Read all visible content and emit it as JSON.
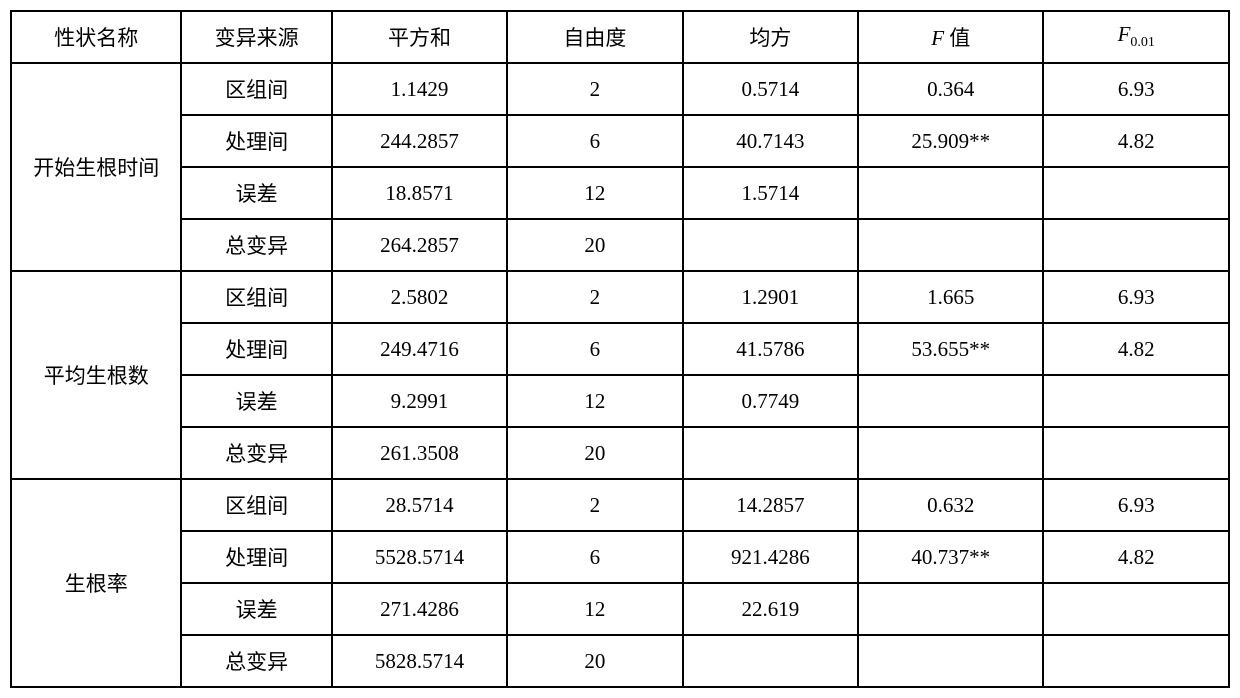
{
  "headers": {
    "trait": "性状名称",
    "source": "变异来源",
    "ss": "平方和",
    "df": "自由度",
    "ms": "均方",
    "f_label": "F",
    "f_suffix": " 值",
    "f001_label": "F",
    "f001_sub": "0.01"
  },
  "groups": [
    {
      "trait": "开始生根时间",
      "rows": [
        {
          "source": "区组间",
          "ss": "1.1429",
          "df": "2",
          "ms": "0.5714",
          "f": "0.364",
          "f001": "6.93"
        },
        {
          "source": "处理间",
          "ss": "244.2857",
          "df": "6",
          "ms": "40.7143",
          "f": "25.909**",
          "f001": "4.82"
        },
        {
          "source": "误差",
          "ss": "18.8571",
          "df": "12",
          "ms": "1.5714",
          "f": "",
          "f001": ""
        },
        {
          "source": "总变异",
          "ss": "264.2857",
          "df": "20",
          "ms": "",
          "f": "",
          "f001": ""
        }
      ]
    },
    {
      "trait": "平均生根数",
      "rows": [
        {
          "source": "区组间",
          "ss": "2.5802",
          "df": "2",
          "ms": "1.2901",
          "f": "1.665",
          "f001": "6.93"
        },
        {
          "source": "处理间",
          "ss": "249.4716",
          "df": "6",
          "ms": "41.5786",
          "f": "53.655**",
          "f001": "4.82"
        },
        {
          "source": "误差",
          "ss": "9.2991",
          "df": "12",
          "ms": "0.7749",
          "f": "",
          "f001": ""
        },
        {
          "source": "总变异",
          "ss": "261.3508",
          "df": "20",
          "ms": "",
          "f": "",
          "f001": ""
        }
      ]
    },
    {
      "trait": "生根率",
      "rows": [
        {
          "source": "区组间",
          "ss": "28.5714",
          "df": "2",
          "ms": "14.2857",
          "f": "0.632",
          "f001": "6.93"
        },
        {
          "source": "处理间",
          "ss": "5528.5714",
          "df": "6",
          "ms": "921.4286",
          "f": "40.737**",
          "f001": "4.82"
        },
        {
          "source": "误差",
          "ss": "271.4286",
          "df": "12",
          "ms": "22.619",
          "f": "",
          "f001": ""
        },
        {
          "source": "总变异",
          "ss": "5828.5714",
          "df": "20",
          "ms": "",
          "f": "",
          "f001": ""
        }
      ]
    }
  ]
}
